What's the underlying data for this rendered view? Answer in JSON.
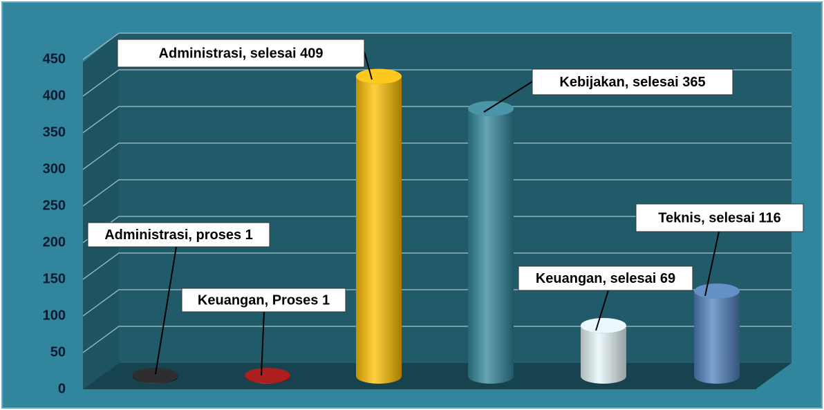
{
  "chart_data": {
    "type": "cylinder",
    "categories": [
      null,
      null,
      null,
      null,
      null,
      null
    ],
    "values": [
      1,
      1,
      409,
      365,
      69,
      116
    ],
    "value_labels": [
      "Administrasi, proses 1",
      "Keuangan, Proses 1",
      "Administrasi, selesai 409",
      "Kebijakan, selesai 365",
      "Keuangan, selesai 69",
      "Teknis, selesai 116"
    ],
    "colors": [
      "#111111",
      "#a00000",
      "#ffc000",
      "#31869b",
      "#e8f7fb",
      "#4f81bd"
    ],
    "ylim": [
      0,
      450
    ],
    "yticks": [
      0,
      50,
      100,
      150,
      200,
      250,
      300,
      350,
      400,
      450
    ],
    "grid": true
  }
}
